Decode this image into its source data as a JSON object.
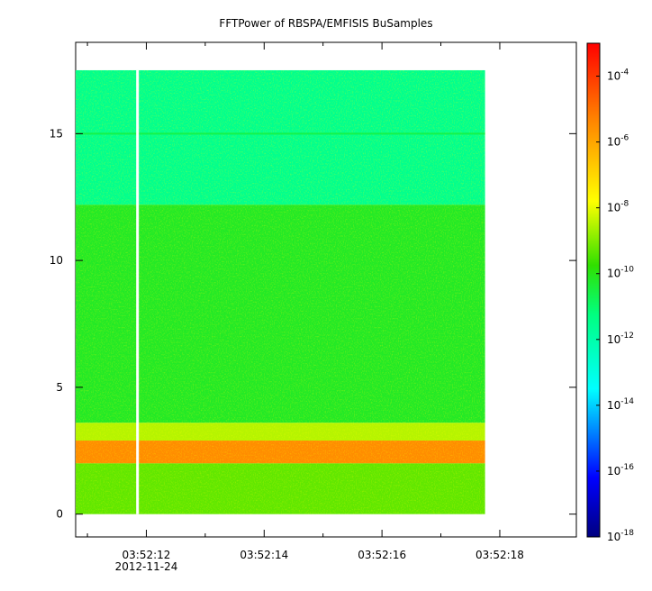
{
  "chart_data": {
    "type": "heatmap",
    "title": "FFTPower of RBSPA/EMFISIS  BuSamples",
    "xlabel": "",
    "ylabel": "",
    "x_ticks": [
      {
        "label": "03:52:12",
        "sublabel": "2012-11-24",
        "t": 12
      },
      {
        "label": "03:52:14",
        "t": 14
      },
      {
        "label": "03:52:16",
        "t": 16
      },
      {
        "label": "03:52:18",
        "t": 18
      }
    ],
    "x_minor_ticks": [
      11,
      13,
      15,
      17
    ],
    "xlim": [
      10.8,
      19.3
    ],
    "data_xlim": [
      10.8,
      17.75
    ],
    "gap_x": 11.85,
    "y_ticks": [
      0,
      5,
      10,
      15
    ],
    "ylim": [
      -0.9,
      18.6
    ],
    "data_ylim": [
      0,
      17.5
    ],
    "grid": false,
    "colorbar": {
      "scale": "log",
      "range": [
        1e-18,
        0.001
      ],
      "tick_base": "10",
      "tick_exponents": [
        "-4",
        "-6",
        "-8",
        "-10",
        "-12",
        "-14",
        "-16",
        "-18"
      ]
    },
    "frequency_bands": [
      {
        "ymin": 12.2,
        "ymax": 17.5,
        "log_power": -11.5
      },
      {
        "ymin": 3.6,
        "ymax": 12.2,
        "log_power": -10.2
      },
      {
        "ymin": 2.9,
        "ymax": 3.6,
        "log_power": -8.5
      },
      {
        "ymin": 2.0,
        "ymax": 2.9,
        "log_power": -5.5
      },
      {
        "ymin": 0.0,
        "ymax": 2.0,
        "log_power": -9.3
      }
    ],
    "lines": [
      {
        "y": 15.0,
        "log_power": -10.6
      }
    ]
  }
}
